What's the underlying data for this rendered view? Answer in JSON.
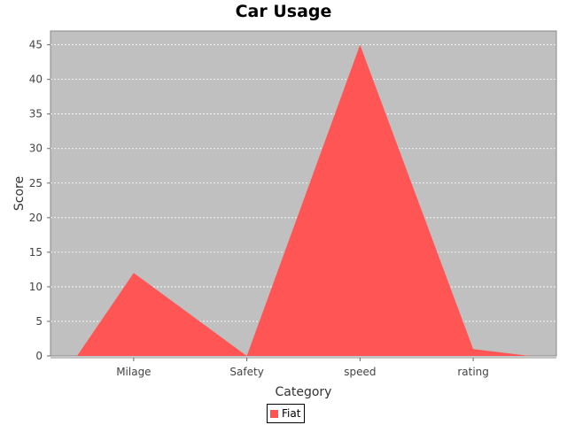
{
  "chart_data": {
    "type": "area",
    "title": "Car Usage",
    "xlabel": "Category",
    "ylabel": "Score",
    "categories": [
      "Milage",
      "Safety",
      "speed",
      "rating"
    ],
    "series": [
      {
        "name": "Fiat",
        "values": [
          12,
          0,
          45,
          1
        ],
        "color": "#ff5555"
      }
    ],
    "yticks": [
      0,
      5,
      10,
      15,
      20,
      25,
      30,
      35,
      40,
      45
    ],
    "ylim": [
      0,
      47
    ],
    "grid": true,
    "legend_position": "bottom",
    "plot_background": "#c0c0c0"
  }
}
